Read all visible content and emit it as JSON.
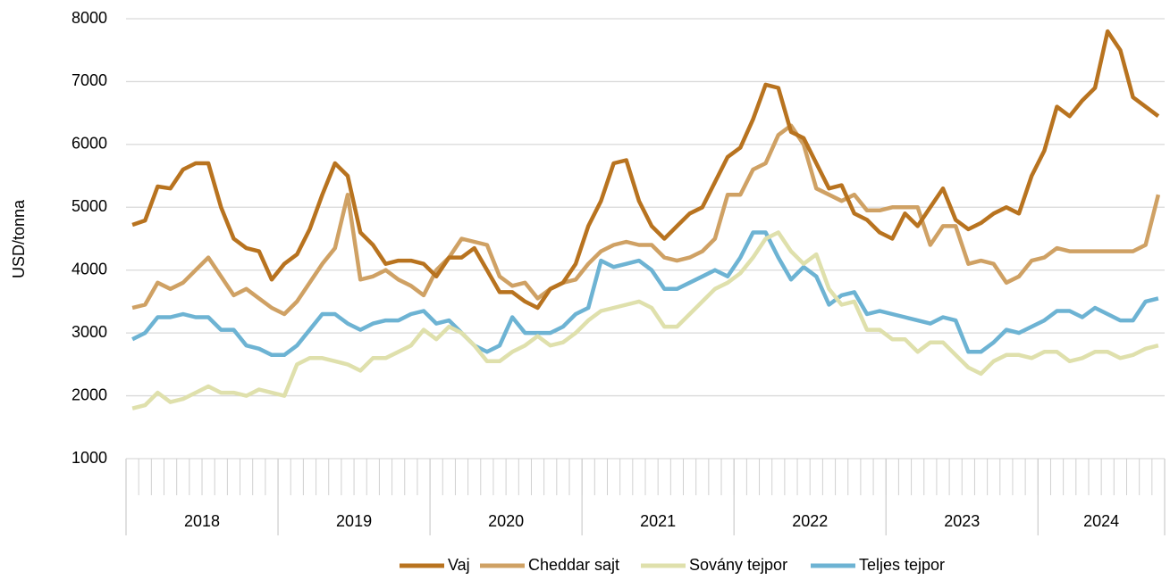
{
  "chart_data": {
    "type": "line",
    "y_label": "USD/tonna",
    "categories": [
      "2018",
      null,
      null,
      null,
      null,
      null,
      null,
      null,
      null,
      null,
      null,
      null,
      "2019",
      null,
      null,
      null,
      null,
      null,
      null,
      null,
      null,
      null,
      null,
      null,
      "2020",
      null,
      null,
      null,
      null,
      null,
      null,
      null,
      null,
      null,
      null,
      null,
      "2021",
      null,
      null,
      null,
      null,
      null,
      null,
      null,
      null,
      null,
      null,
      null,
      "2022",
      null,
      null,
      null,
      null,
      null,
      null,
      null,
      null,
      null,
      null,
      null,
      "2023",
      null,
      null,
      null,
      null,
      null,
      null,
      null,
      null,
      null,
      null,
      null,
      "2024",
      null,
      null,
      null,
      null,
      null,
      null,
      null,
      null,
      null
    ],
    "series": [
      {
        "name": "Vaj",
        "color": "#b8731f",
        "values": [
          4720,
          4790,
          5330,
          5300,
          5600,
          5700,
          5700,
          5000,
          4500,
          4350,
          4300,
          3850,
          4100,
          4250,
          4650,
          5200,
          5700,
          5500,
          4600,
          4400,
          4100,
          4150,
          4150,
          4100,
          3900,
          4200,
          4200,
          4350,
          4000,
          3650,
          3650,
          3500,
          3400,
          3700,
          3800,
          4100,
          4700,
          5100,
          5700,
          5750,
          5100,
          4700,
          4500,
          4700,
          4900,
          5000,
          5400,
          5800,
          5950,
          6400,
          6950,
          6900,
          6200,
          6100,
          5700,
          5300,
          5350,
          4900,
          4800,
          4600,
          4500,
          4900,
          4700,
          5000,
          5300,
          4800,
          4650,
          4750,
          4900,
          5000,
          4900,
          5500,
          5900,
          6600,
          6450,
          6700,
          6900,
          7800,
          7500,
          6750,
          6600,
          6450
        ]
      },
      {
        "name": "Cheddar sajt",
        "color": "#cfa164",
        "values": [
          3400,
          3450,
          3800,
          3700,
          3800,
          4000,
          4200,
          3900,
          3600,
          3700,
          3550,
          3400,
          3300,
          3500,
          3800,
          4100,
          4350,
          5200,
          3850,
          3900,
          4000,
          3850,
          3750,
          3600,
          4000,
          4200,
          4500,
          4450,
          4400,
          3900,
          3750,
          3800,
          3550,
          3700,
          3800,
          3850,
          4100,
          4300,
          4400,
          4450,
          4400,
          4400,
          4200,
          4150,
          4200,
          4300,
          4500,
          5200,
          5200,
          5600,
          5700,
          6150,
          6300,
          6000,
          5300,
          5200,
          5100,
          5200,
          4950,
          4950,
          5000,
          5000,
          5000,
          4400,
          4700,
          4700,
          4100,
          4150,
          4100,
          3800,
          3900,
          4150,
          4200,
          4350,
          4300,
          4300,
          4300,
          4300,
          4300,
          4300,
          4400,
          5200
        ]
      },
      {
        "name": "Sovány tejpor",
        "color": "#dfe0ac",
        "values": [
          1800,
          1850,
          2050,
          1900,
          1950,
          2050,
          2150,
          2050,
          2050,
          2000,
          2100,
          2050,
          2000,
          2500,
          2600,
          2600,
          2550,
          2500,
          2400,
          2600,
          2600,
          2700,
          2800,
          3050,
          2900,
          3100,
          3000,
          2800,
          2550,
          2550,
          2700,
          2800,
          2950,
          2800,
          2850,
          3000,
          3200,
          3350,
          3400,
          3450,
          3500,
          3400,
          3100,
          3100,
          3300,
          3500,
          3700,
          3800,
          3950,
          4200,
          4500,
          4600,
          4300,
          4100,
          4250,
          3700,
          3450,
          3500,
          3050,
          3050,
          2900,
          2900,
          2700,
          2850,
          2850,
          2650,
          2450,
          2350,
          2550,
          2650,
          2650,
          2600,
          2700,
          2700,
          2550,
          2600,
          2700,
          2700,
          2600,
          2650,
          2750,
          2800
        ]
      },
      {
        "name": "Teljes tejpor",
        "color": "#6db3d3",
        "values": [
          2900,
          3000,
          3250,
          3250,
          3300,
          3250,
          3250,
          3050,
          3050,
          2800,
          2750,
          2650,
          2650,
          2800,
          3050,
          3300,
          3300,
          3150,
          3050,
          3150,
          3200,
          3200,
          3300,
          3350,
          3150,
          3200,
          3000,
          2800,
          2700,
          2800,
          3250,
          3000,
          3000,
          3000,
          3100,
          3300,
          3400,
          4150,
          4050,
          4100,
          4150,
          4000,
          3700,
          3700,
          3800,
          3900,
          4000,
          3900,
          4200,
          4600,
          4600,
          4200,
          3850,
          4050,
          3900,
          3450,
          3600,
          3650,
          3300,
          3350,
          3300,
          3250,
          3200,
          3150,
          3250,
          3200,
          2700,
          2700,
          2850,
          3050,
          3000,
          3100,
          3200,
          3350,
          3350,
          3250,
          3400,
          3300,
          3200,
          3200,
          3500,
          3550
        ]
      }
    ],
    "ylim": [
      1000,
      8000
    ],
    "yticks": [
      1000,
      2000,
      3000,
      4000,
      5000,
      6000,
      7000,
      8000
    ],
    "grid": true,
    "legend": "bottom"
  }
}
